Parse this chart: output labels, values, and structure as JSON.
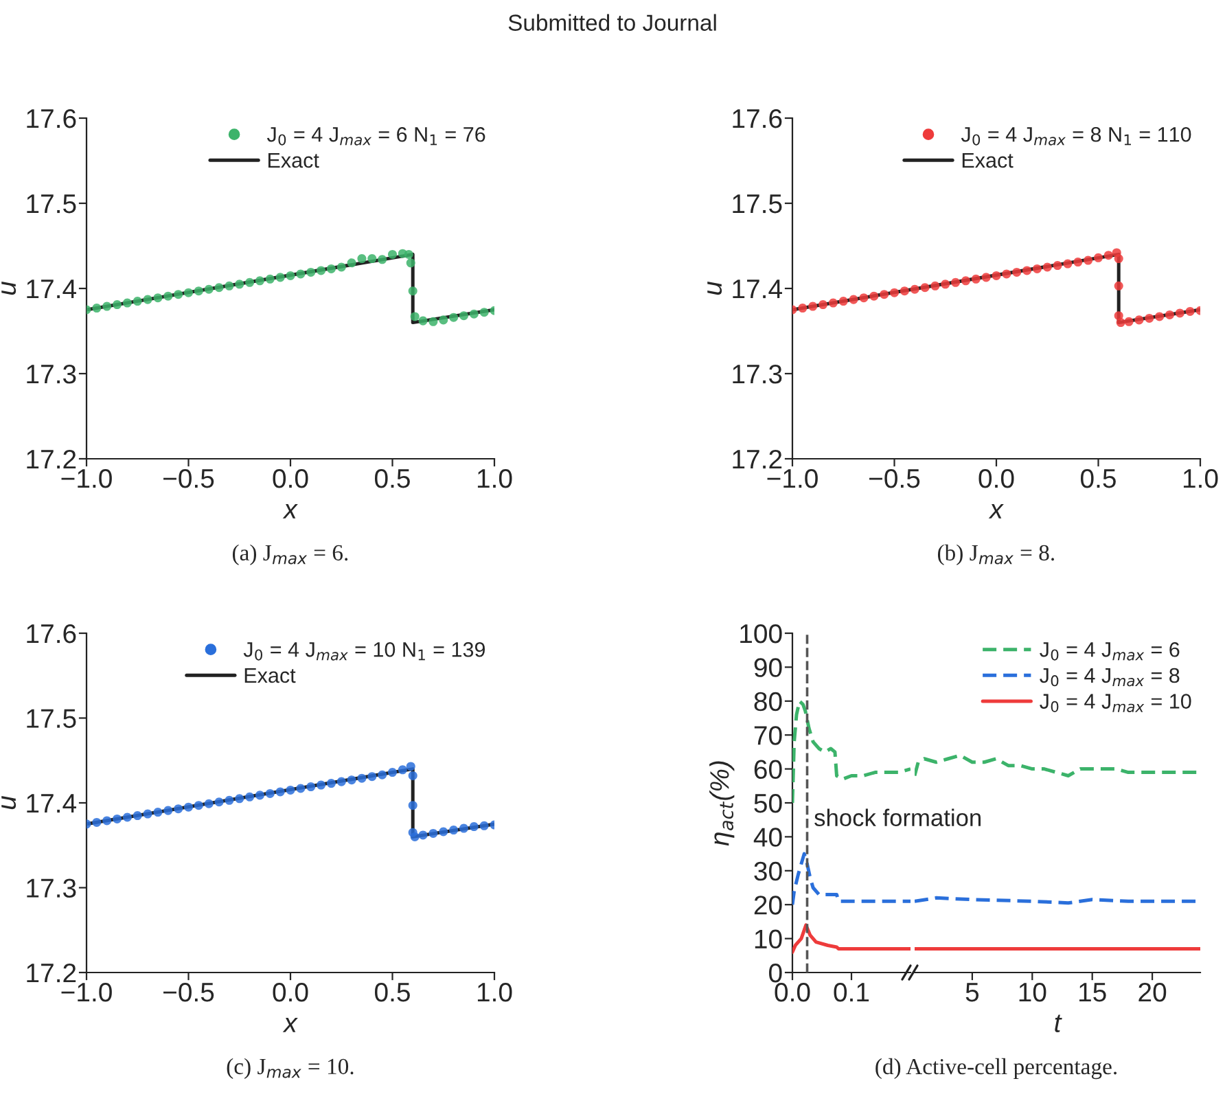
{
  "chart_data": [
    {
      "type": "line",
      "title": "Submitted to Journal",
      "xlabel": "x",
      "ylabel": "u",
      "annotations": [
        "(a) J$_{max}$ = 6."
      ],
      "xlim": [
        -1.0,
        1.0
      ],
      "xticks": [
        {
          "value": -1.0,
          "label": "−1.0"
        },
        {
          "value": -0.5,
          "label": "−0.5"
        },
        {
          "value": 0.0,
          "label": "0.0"
        },
        {
          "value": 0.5,
          "label": "0.5"
        },
        {
          "value": 1.0,
          "label": "1.0"
        }
      ],
      "ylim": [
        17.2,
        17.6
      ],
      "yticks": [
        17.2,
        17.3,
        17.4,
        17.5,
        17.6
      ],
      "legend": "top right",
      "grid": false,
      "series": [
        {
          "name": "J$_{0}$ = 4 J$_{max}$ = 6 N$_{1}$ = 76",
          "type": "scatter",
          "marker": "circle",
          "color": "#3cb36a",
          "x": [
            -1.0,
            -0.95,
            -0.9,
            -0.85,
            -0.8,
            -0.75,
            -0.7,
            -0.65,
            -0.6,
            -0.55,
            -0.5,
            -0.45,
            -0.4,
            -0.35,
            -0.3,
            -0.25,
            -0.2,
            -0.15,
            -0.1,
            -0.05,
            0.0,
            0.05,
            0.1,
            0.15,
            0.2,
            0.25,
            0.3,
            0.35,
            0.4,
            0.45,
            0.5,
            0.55,
            0.58,
            0.59,
            0.6,
            0.61,
            0.65,
            0.7,
            0.75,
            0.8,
            0.85,
            0.9,
            0.95,
            1.0
          ],
          "values": [
            17.375,
            17.377,
            17.379,
            17.381,
            17.383,
            17.385,
            17.387,
            17.389,
            17.391,
            17.393,
            17.395,
            17.397,
            17.399,
            17.401,
            17.403,
            17.405,
            17.407,
            17.409,
            17.411,
            17.413,
            17.415,
            17.417,
            17.419,
            17.421,
            17.423,
            17.425,
            17.43,
            17.435,
            17.435,
            17.434,
            17.44,
            17.441,
            17.44,
            17.43,
            17.397,
            17.367,
            17.362,
            17.361,
            17.363,
            17.366,
            17.368,
            17.37,
            17.372,
            17.374
          ]
        },
        {
          "name": "Exact",
          "type": "line",
          "line_style": "solid",
          "color": "#222222",
          "x": [
            -1.0,
            0.6,
            0.6,
            1.0
          ],
          "values": [
            17.375,
            17.44,
            17.36,
            17.375
          ]
        }
      ]
    },
    {
      "type": "line",
      "xlabel": "x",
      "ylabel": "u",
      "annotations": [
        "(b) J$_{max}$ = 8."
      ],
      "xlim": [
        -1.0,
        1.0
      ],
      "xticks": [
        {
          "value": -1.0,
          "label": "−1.0"
        },
        {
          "value": -0.5,
          "label": "−0.5"
        },
        {
          "value": 0.0,
          "label": "0.0"
        },
        {
          "value": 0.5,
          "label": "0.5"
        },
        {
          "value": 1.0,
          "label": "1.0"
        }
      ],
      "ylim": [
        17.2,
        17.6
      ],
      "yticks": [
        17.2,
        17.3,
        17.4,
        17.5,
        17.6
      ],
      "legend": "top right",
      "grid": false,
      "series": [
        {
          "name": "J$_{0}$ = 4 J$_{max}$ = 8 N$_{1}$ = 110",
          "type": "scatter",
          "marker": "circle",
          "color": "#ee3b3b",
          "x": [
            -1.0,
            -0.95,
            -0.9,
            -0.85,
            -0.8,
            -0.75,
            -0.7,
            -0.65,
            -0.6,
            -0.55,
            -0.5,
            -0.45,
            -0.4,
            -0.35,
            -0.3,
            -0.25,
            -0.2,
            -0.15,
            -0.1,
            -0.05,
            0.0,
            0.05,
            0.1,
            0.15,
            0.2,
            0.25,
            0.3,
            0.35,
            0.4,
            0.45,
            0.5,
            0.55,
            0.59,
            0.6,
            0.6,
            0.6,
            0.61,
            0.65,
            0.7,
            0.75,
            0.8,
            0.85,
            0.9,
            0.95,
            1.0
          ],
          "values": [
            17.375,
            17.377,
            17.379,
            17.381,
            17.383,
            17.385,
            17.387,
            17.389,
            17.391,
            17.393,
            17.395,
            17.397,
            17.399,
            17.401,
            17.403,
            17.405,
            17.407,
            17.409,
            17.411,
            17.413,
            17.415,
            17.417,
            17.419,
            17.421,
            17.423,
            17.425,
            17.427,
            17.429,
            17.431,
            17.433,
            17.436,
            17.439,
            17.442,
            17.435,
            17.403,
            17.368,
            17.36,
            17.361,
            17.363,
            17.365,
            17.367,
            17.369,
            17.371,
            17.373,
            17.374
          ]
        },
        {
          "name": "Exact",
          "type": "line",
          "line_style": "solid",
          "color": "#222222",
          "x": [
            -1.0,
            0.6,
            0.6,
            1.0
          ],
          "values": [
            17.375,
            17.44,
            17.36,
            17.375
          ]
        }
      ]
    },
    {
      "type": "line",
      "xlabel": "x",
      "ylabel": "u",
      "annotations": [
        "(c) J$_{max}$ = 10."
      ],
      "xlim": [
        -1.0,
        1.0
      ],
      "xticks": [
        {
          "value": -1.0,
          "label": "−1.0"
        },
        {
          "value": -0.5,
          "label": "−0.5"
        },
        {
          "value": 0.0,
          "label": "0.0"
        },
        {
          "value": 0.5,
          "label": "0.5"
        },
        {
          "value": 1.0,
          "label": "1.0"
        }
      ],
      "ylim": [
        17.2,
        17.6
      ],
      "yticks": [
        17.2,
        17.3,
        17.4,
        17.5,
        17.6
      ],
      "legend": "top right",
      "grid": false,
      "series": [
        {
          "name": "J$_{0}$ = 4 J$_{max}$ = 10 N$_{1}$ = 139",
          "type": "scatter",
          "marker": "circle",
          "color": "#2a6fdb",
          "x": [
            -1.0,
            -0.95,
            -0.9,
            -0.85,
            -0.8,
            -0.75,
            -0.7,
            -0.65,
            -0.6,
            -0.55,
            -0.5,
            -0.45,
            -0.4,
            -0.35,
            -0.3,
            -0.25,
            -0.2,
            -0.15,
            -0.1,
            -0.05,
            0.0,
            0.05,
            0.1,
            0.15,
            0.2,
            0.25,
            0.3,
            0.35,
            0.4,
            0.45,
            0.5,
            0.55,
            0.59,
            0.6,
            0.6,
            0.6,
            0.61,
            0.65,
            0.7,
            0.75,
            0.8,
            0.85,
            0.9,
            0.95,
            1.0
          ],
          "values": [
            17.375,
            17.377,
            17.379,
            17.381,
            17.383,
            17.385,
            17.387,
            17.389,
            17.391,
            17.393,
            17.395,
            17.397,
            17.399,
            17.401,
            17.403,
            17.405,
            17.407,
            17.409,
            17.411,
            17.413,
            17.415,
            17.417,
            17.419,
            17.421,
            17.423,
            17.425,
            17.427,
            17.429,
            17.431,
            17.433,
            17.436,
            17.439,
            17.443,
            17.432,
            17.397,
            17.365,
            17.36,
            17.362,
            17.364,
            17.366,
            17.368,
            17.37,
            17.372,
            17.373,
            17.374
          ]
        },
        {
          "name": "Exact",
          "type": "line",
          "line_style": "solid",
          "color": "#222222",
          "x": [
            -1.0,
            0.6,
            0.6,
            1.0
          ],
          "values": [
            17.375,
            17.44,
            17.36,
            17.375
          ]
        }
      ]
    },
    {
      "type": "line",
      "ylabel": "η$_{act}$(%)",
      "xlim": [
        0.0,
        0.2
      ],
      "xticks": [
        {
          "value": 0.0,
          "label": "0.0"
        },
        0.1
      ],
      "ylim": [
        0,
        100
      ],
      "yticks": [
        0,
        10,
        20,
        30,
        40,
        50,
        60,
        70,
        80,
        90,
        100
      ],
      "grid": false,
      "ref_lines": [
        {
          "axis": "x",
          "value": 0.025,
          "label": "shock formation",
          "color": "#555555",
          "line_style": "dashed"
        }
      ],
      "series": [
        {
          "type": "line",
          "line_style": "dashed",
          "color": "#3cb36a",
          "x": [
            0.0,
            0.003,
            0.007,
            0.012,
            0.018,
            0.022,
            0.028,
            0.035,
            0.045,
            0.055,
            0.065,
            0.072,
            0.075,
            0.085,
            0.1,
            0.12,
            0.14,
            0.16,
            0.18,
            0.2
          ],
          "values": [
            50,
            68,
            76,
            80,
            79,
            77,
            72,
            68,
            66,
            65,
            66,
            65,
            58,
            57,
            58,
            58,
            59,
            59,
            59,
            60
          ]
        },
        {
          "type": "line",
          "line_style": "dashed",
          "color": "#2a6fdb",
          "x": [
            0.0,
            0.003,
            0.01,
            0.015,
            0.02,
            0.025,
            0.03,
            0.035,
            0.045,
            0.06,
            0.075,
            0.078,
            0.1,
            0.15,
            0.2
          ],
          "values": [
            20,
            24,
            29,
            32,
            35,
            32,
            28,
            25,
            23,
            23,
            23,
            21,
            21,
            21,
            21
          ]
        },
        {
          "type": "line",
          "line_style": "solid",
          "color": "#ee3b3b",
          "x": [
            0.0,
            0.005,
            0.015,
            0.023,
            0.03,
            0.04,
            0.06,
            0.075,
            0.078,
            0.2
          ],
          "values": [
            6,
            8,
            10,
            14,
            11,
            9,
            8,
            7.5,
            7,
            7
          ]
        }
      ]
    },
    {
      "type": "line",
      "xlabel": "t",
      "annotations": [
        "(d) Active-cell percentage."
      ],
      "xlim": [
        0.2,
        24
      ],
      "xticks": [
        5,
        10,
        15,
        20
      ],
      "ylim": [
        0,
        100
      ],
      "tick_labels": "x",
      "legend": "top right",
      "grid": false,
      "series": [
        {
          "name": "J$_{0}$ = 4 J$_{max}$ = 6",
          "type": "line",
          "line_style": "dashed",
          "color": "#3cb36a",
          "x": [
            0.2,
            0.5,
            1,
            2,
            3,
            4,
            5,
            6,
            7,
            8,
            9,
            10,
            11,
            12,
            13,
            14,
            15,
            16,
            17,
            18,
            19,
            20,
            21,
            22,
            23,
            24
          ],
          "values": [
            58,
            62,
            63,
            62,
            63,
            64,
            62,
            62,
            63,
            61,
            61,
            60,
            60,
            59,
            58,
            60,
            60,
            60,
            60,
            59,
            59,
            59,
            59,
            59,
            59,
            59
          ]
        },
        {
          "name": "J$_{0}$ = 4 J$_{max}$ = 8",
          "type": "line",
          "line_style": "dashed",
          "color": "#2a6fdb",
          "x": [
            0.2,
            2,
            5,
            10,
            13,
            15,
            18,
            24
          ],
          "values": [
            21,
            22,
            21.5,
            21,
            20.5,
            21.5,
            21,
            21
          ]
        },
        {
          "name": "J$_{0}$ = 4 J$_{max}$ = 10",
          "type": "line",
          "line_style": "solid",
          "color": "#ee3b3b",
          "x": [
            0.2,
            24
          ],
          "values": [
            7,
            7
          ]
        }
      ]
    }
  ]
}
